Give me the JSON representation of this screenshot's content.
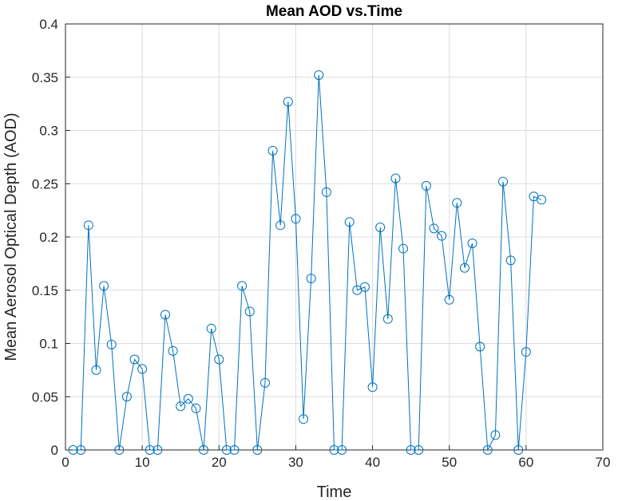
{
  "chart_data": {
    "type": "line",
    "title": "Mean AOD vs.Time",
    "xlabel": "Time",
    "ylabel": "Mean Aerosol Optical Depth (AOD)",
    "xlim": [
      0,
      70
    ],
    "ylim": [
      0,
      0.4
    ],
    "x_ticks": [
      "0",
      "10",
      "20",
      "30",
      "40",
      "50",
      "60",
      "70"
    ],
    "y_ticks": [
      "0",
      "0.05",
      "0.1",
      "0.15",
      "0.2",
      "0.25",
      "0.3",
      "0.35",
      "0.4"
    ],
    "grid": true,
    "marker": "circle",
    "line_color": "#0072BD",
    "series": [
      {
        "x": [
          1,
          2,
          3,
          4,
          5,
          6,
          7,
          8,
          9,
          10,
          11,
          12,
          13,
          14,
          15,
          16,
          17,
          18,
          19,
          20,
          21,
          22,
          23,
          24,
          25,
          26,
          27,
          28,
          29,
          30,
          31,
          32,
          33,
          34,
          35,
          36,
          37,
          38,
          39,
          40,
          41,
          42,
          43,
          44,
          45,
          46,
          47,
          48,
          49,
          50,
          51,
          52,
          53,
          54,
          55,
          56,
          57,
          58,
          59,
          60,
          61,
          62
        ],
        "values": [
          0,
          0,
          0.211,
          0.075,
          0.154,
          0.099,
          0,
          0.05,
          0.085,
          0.076,
          0,
          0,
          0.127,
          0.093,
          0.041,
          0.048,
          0.039,
          0,
          0.114,
          0.085,
          0,
          0,
          0.154,
          0.13,
          0,
          0.063,
          0.281,
          0.211,
          0.327,
          0.217,
          0.029,
          0.161,
          0.352,
          0.242,
          0,
          0,
          0.214,
          0.15,
          0.153,
          0.059,
          0.209,
          0.123,
          0.255,
          0.189,
          0,
          0,
          0.248,
          0.208,
          0.201,
          0.141,
          0.232,
          0.171,
          0.194,
          0.097,
          0,
          0.014,
          0.252,
          0.178,
          0,
          0.092,
          0.238,
          0.235
        ]
      }
    ]
  }
}
